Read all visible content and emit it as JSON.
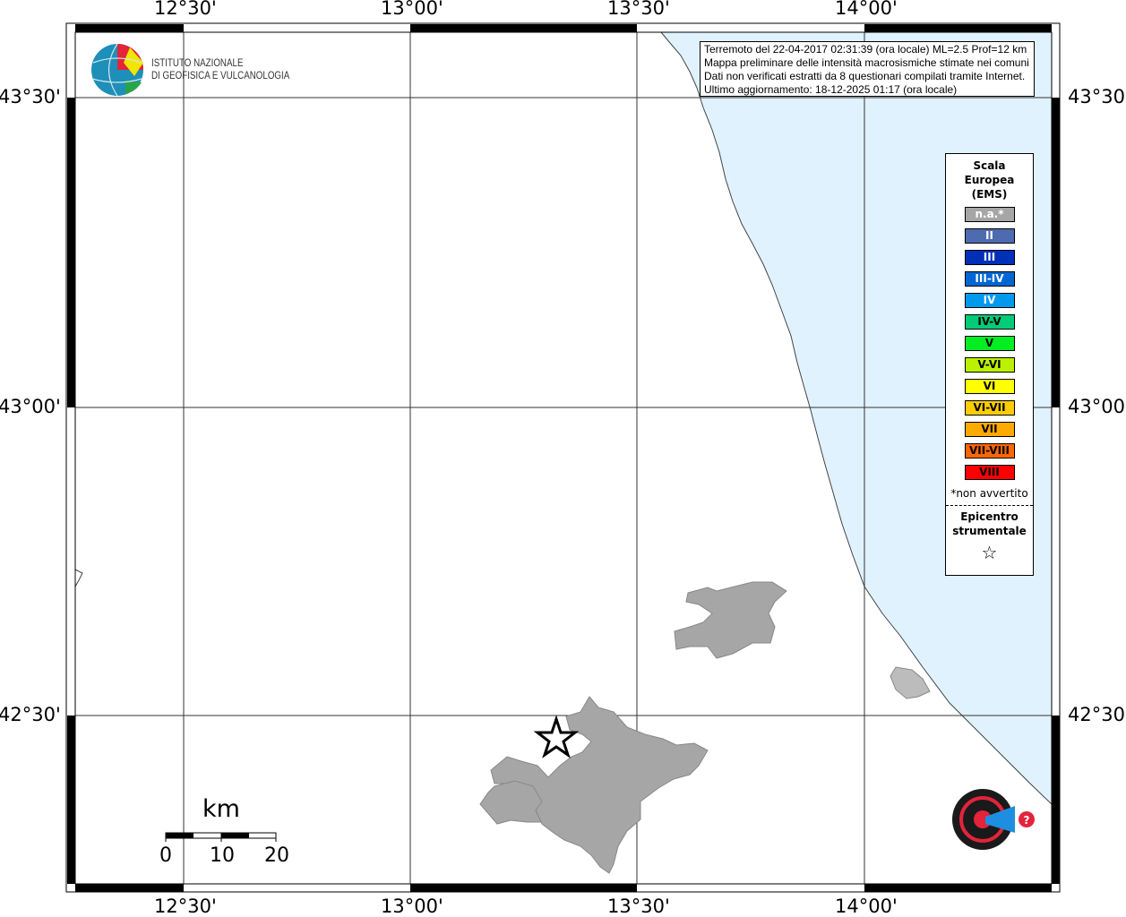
{
  "map": {
    "lon_labels": [
      "12°30'",
      "13°00'",
      "13°30'",
      "14°00'"
    ],
    "lat_labels": [
      "43°30'",
      "43°00'",
      "42°30'"
    ],
    "colors": {
      "sea": "#e0f2fe",
      "land_reported": "#a6a6a6",
      "frame": "#000000"
    },
    "epicenter_icon": "star-icon"
  },
  "logo": {
    "line1": "ISTITUTO NAZIONALE",
    "line2": "DI GEOFISICA E VULCANOLOGIA"
  },
  "info": [
    "Terremoto del 22-04-2017 02:31:39 (ora locale) ML=2.5 Prof=12 km",
    "Mappa preliminare delle intensità macrosismiche stimate nei comuni",
    "Dati non verificati estratti da 8 questionari compilati tramite Internet.",
    "Ultimo aggiornamento: 18-12-2025 01:17 (ora locale)"
  ],
  "legend": {
    "title1": "Scala",
    "title2": "Europea",
    "title3": "(EMS)",
    "items": [
      {
        "label": "n.a.*",
        "color": "#a6a6a6",
        "text": "#ffffff"
      },
      {
        "label": "II",
        "color": "#4f6bb0",
        "text": "#ffffff"
      },
      {
        "label": "III",
        "color": "#0030b8",
        "text": "#ffffff"
      },
      {
        "label": "III-IV",
        "color": "#0066d4",
        "text": "#ffffff"
      },
      {
        "label": "IV",
        "color": "#0099ee",
        "text": "#ffffff"
      },
      {
        "label": "IV-V",
        "color": "#00cc77",
        "text": "#000000"
      },
      {
        "label": "V",
        "color": "#00ee22",
        "text": "#000000"
      },
      {
        "label": "V-VI",
        "color": "#bbf000",
        "text": "#000000"
      },
      {
        "label": "VI",
        "color": "#ffff00",
        "text": "#000000"
      },
      {
        "label": "VI-VII",
        "color": "#ffcc00",
        "text": "#000000"
      },
      {
        "label": "VII",
        "color": "#ffaa00",
        "text": "#000000"
      },
      {
        "label": "VII-VIII",
        "color": "#ff6600",
        "text": "#000000"
      },
      {
        "label": "VIII",
        "color": "#ff0000",
        "text": "#000000"
      }
    ],
    "note": "*non avvertito",
    "epi1": "Epicentro",
    "epi2": "strumentale"
  },
  "scale": {
    "unit": "km",
    "ticks": [
      "0",
      "10",
      "20"
    ]
  },
  "hsit_logo": "www.haisentitoilterremoto.it"
}
